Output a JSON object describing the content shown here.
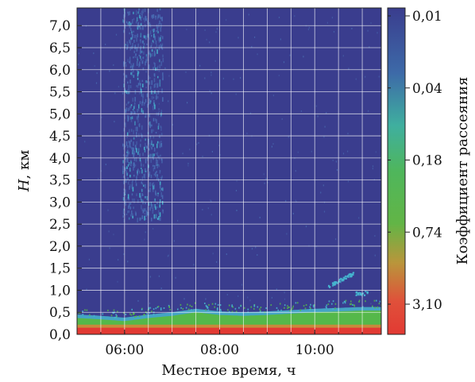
{
  "chart_data": {
    "type": "heatmap",
    "title": "",
    "xlabel": "Местное время, ч",
    "ylabel_italic": "H",
    "ylabel_rest": ", км",
    "colorbar_label": "Коэффициент рассеяния",
    "x_range_hours": [
      5.0,
      11.4
    ],
    "y_range_km": [
      0.0,
      7.4
    ],
    "x_ticks": [
      {
        "value": 6,
        "label": "06:00"
      },
      {
        "value": 8,
        "label": "08:00"
      },
      {
        "value": 10,
        "label": "10:00"
      }
    ],
    "y_ticks": [
      {
        "value": 0.0,
        "label": "0,0"
      },
      {
        "value": 0.5,
        "label": "0,5"
      },
      {
        "value": 1.0,
        "label": "1,0"
      },
      {
        "value": 1.5,
        "label": "1,5"
      },
      {
        "value": 2.0,
        "label": "2,0"
      },
      {
        "value": 2.5,
        "label": "2,5"
      },
      {
        "value": 3.0,
        "label": "3,0"
      },
      {
        "value": 3.5,
        "label": "3,5"
      },
      {
        "value": 4.0,
        "label": "4,0"
      },
      {
        "value": 4.5,
        "label": "4,5"
      },
      {
        "value": 5.0,
        "label": "5,0"
      },
      {
        "value": 5.5,
        "label": "5,5"
      },
      {
        "value": 6.0,
        "label": "6,0"
      },
      {
        "value": 6.5,
        "label": "6,5"
      },
      {
        "value": 7.0,
        "label": "7,0"
      }
    ],
    "colorbar_ticks": [
      "0,01",
      "0,04",
      "0,18",
      "0,74",
      "3,10"
    ],
    "colorbar_scale": "log",
    "grid": true,
    "colors": {
      "background": "#3a3d8e",
      "low": "#3a3d8e",
      "cyan": "#46b6cf",
      "green": "#55b84a",
      "orange": "#c88a3c",
      "red": "#e23a33",
      "grid": "#ffffff"
    },
    "boundary_layer_top_km": [
      {
        "x": 5.0,
        "h": 0.45
      },
      {
        "x": 5.5,
        "h": 0.42
      },
      {
        "x": 6.0,
        "h": 0.38
      },
      {
        "x": 6.5,
        "h": 0.45
      },
      {
        "x": 7.0,
        "h": 0.5
      },
      {
        "x": 7.5,
        "h": 0.58
      },
      {
        "x": 8.0,
        "h": 0.52
      },
      {
        "x": 8.5,
        "h": 0.5
      },
      {
        "x": 9.0,
        "h": 0.52
      },
      {
        "x": 9.5,
        "h": 0.55
      },
      {
        "x": 10.0,
        "h": 0.58
      },
      {
        "x": 10.5,
        "h": 0.6
      },
      {
        "x": 11.0,
        "h": 0.62
      },
      {
        "x": 11.4,
        "h": 0.62
      }
    ]
  }
}
